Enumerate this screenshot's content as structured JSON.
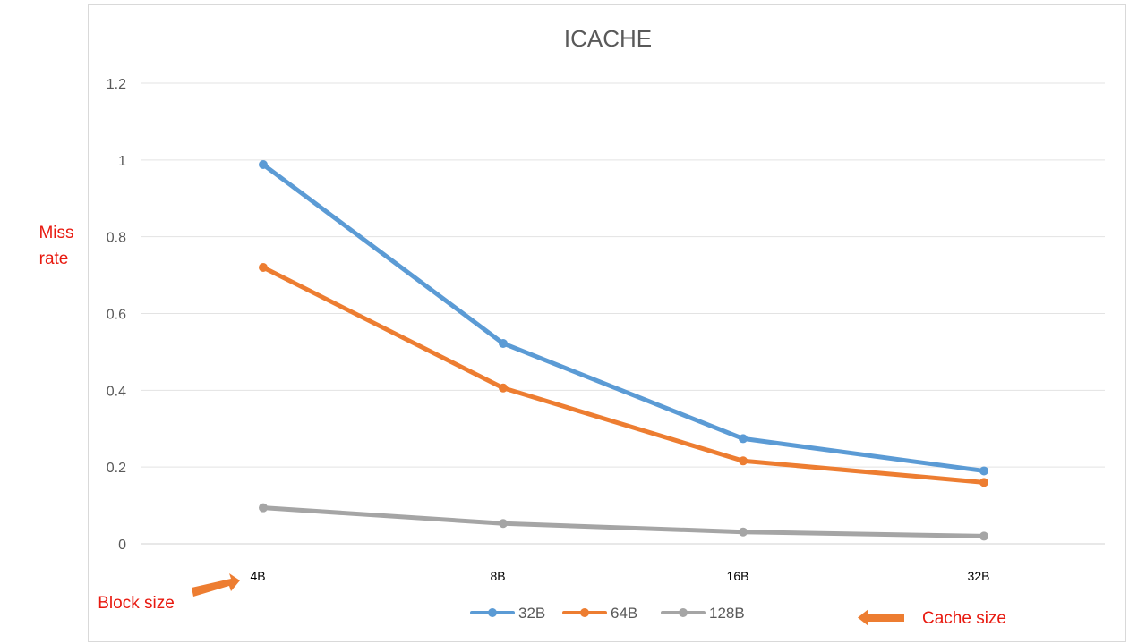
{
  "chart_data": {
    "type": "line",
    "title": "ICACHE",
    "ylabel_lines": [
      "Miss",
      "rate"
    ],
    "categories": [
      "4B",
      "8B",
      "16B",
      "32B"
    ],
    "yticks": [
      "0",
      "0.2",
      "0.4",
      "0.6",
      "0.8",
      "1",
      "1.2"
    ],
    "ylim": [
      0,
      1.2
    ],
    "grid": true,
    "legend_placement": "bottom",
    "series": [
      {
        "name": "32B",
        "color": "#5b9bd5",
        "values": [
          0.988,
          0.522,
          0.274,
          0.19
        ]
      },
      {
        "name": "64B",
        "color": "#ed7d31",
        "values": [
          0.72,
          0.406,
          0.216,
          0.16
        ]
      },
      {
        "name": "128B",
        "color": "#a5a5a5",
        "values": [
          0.094,
          0.053,
          0.031,
          0.02
        ]
      }
    ],
    "annotations": {
      "block_size": "Block size",
      "cache_size": "Cache size"
    },
    "arrow_color": "#ed7d31"
  }
}
